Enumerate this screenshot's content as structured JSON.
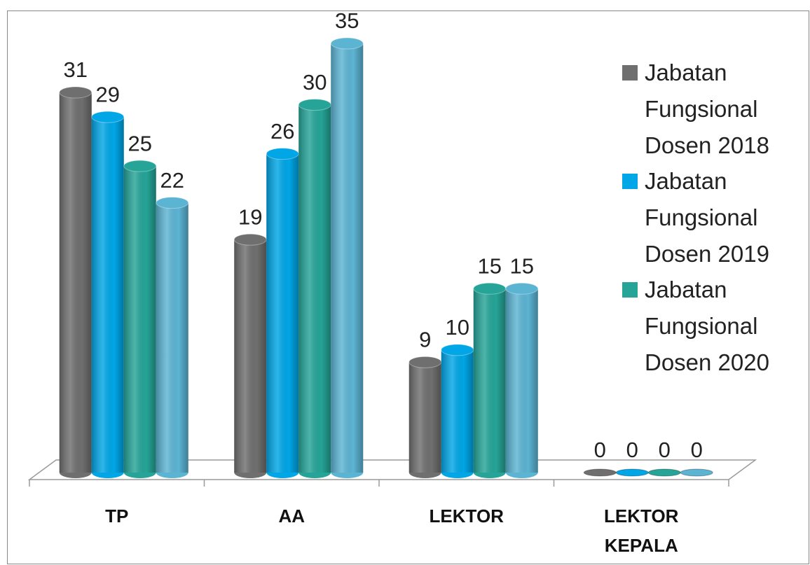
{
  "chart_data": {
    "type": "bar3d",
    "categories": [
      "TP",
      "AA",
      "LEKTOR",
      "LEKTOR KEPALA"
    ],
    "series": [
      {
        "name": "Jabatan Fungsional Dosen 2018",
        "color": "#6f6f6f",
        "values": [
          31,
          19,
          9,
          0
        ]
      },
      {
        "name": "Jabatan Fungsional Dosen 2019",
        "color": "#00a6e6",
        "values": [
          29,
          26,
          10,
          0
        ]
      },
      {
        "name": "Jabatan Fungsional Dosen 2020",
        "color": "#25a497",
        "values": [
          25,
          30,
          15,
          0
        ]
      },
      {
        "color": "#5cb4d3",
        "values": [
          22,
          35,
          15,
          0
        ]
      }
    ]
  }
}
